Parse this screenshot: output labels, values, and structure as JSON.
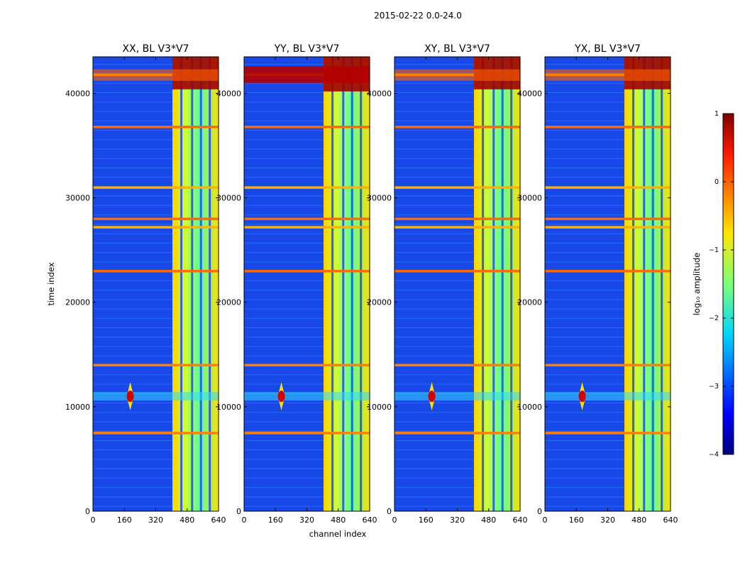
{
  "chart_data": {
    "type": "heatmap",
    "suptitle": "2015-02-22 0.0-24.0",
    "xlabel": "channel index",
    "ylabel": "time index",
    "xlim": [
      0,
      640
    ],
    "ylim": [
      0,
      43500
    ],
    "xticks": [
      0,
      160,
      320,
      480,
      640
    ],
    "yticks": [
      0,
      10000,
      20000,
      30000,
      40000
    ],
    "colorbar": {
      "label": "log₁₀ amplitude",
      "range": [
        -4,
        1
      ],
      "ticks": [
        1,
        0,
        -1,
        -2,
        -3,
        -4
      ],
      "colormap": "jet"
    },
    "panels": [
      {
        "title": "XX, BL V3*V7",
        "bright_block_channels": [
          405,
          640
        ],
        "bright_band_time": [
          41200,
          42300
        ]
      },
      {
        "title": "YY, BL V3*V7",
        "bright_block_channels": [
          405,
          640
        ],
        "bright_band_time": [
          41000,
          42600
        ]
      },
      {
        "title": "XY, BL V3*V7",
        "bright_block_channels": [
          405,
          640
        ],
        "bright_band_time": [
          41200,
          42300
        ]
      },
      {
        "title": "YX, BL V3*V7",
        "bright_block_channels": [
          405,
          640
        ],
        "bright_band_time": [
          41200,
          42300
        ]
      }
    ],
    "horizontal_bands_time": [
      7500,
      14000,
      23000,
      27200,
      28000,
      31000,
      36800,
      41800
    ],
    "hotspot": {
      "channel": 190,
      "time": 11000
    }
  }
}
